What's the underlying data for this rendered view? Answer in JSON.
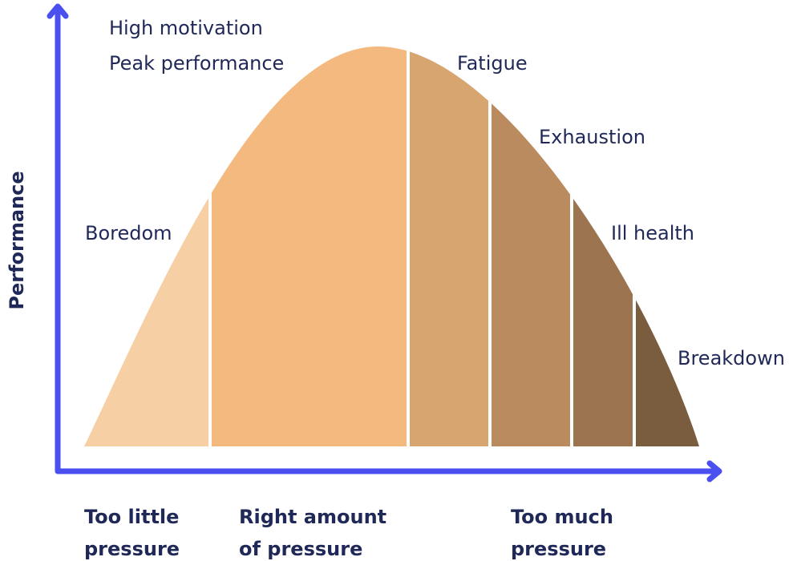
{
  "y_axis_label": "Performance",
  "zones": [
    {
      "label": "Boredom"
    },
    {
      "lines": [
        "High motivation",
        "Peak performance"
      ]
    },
    {
      "label": "Fatigue"
    },
    {
      "label": "Exhaustion"
    },
    {
      "label": "Ill health"
    },
    {
      "label": "Breakdown"
    }
  ],
  "pressure_labels": [
    [
      "Too little",
      "pressure"
    ],
    [
      "Right amount",
      "of pressure"
    ],
    [
      "Too much",
      "pressure"
    ]
  ]
}
